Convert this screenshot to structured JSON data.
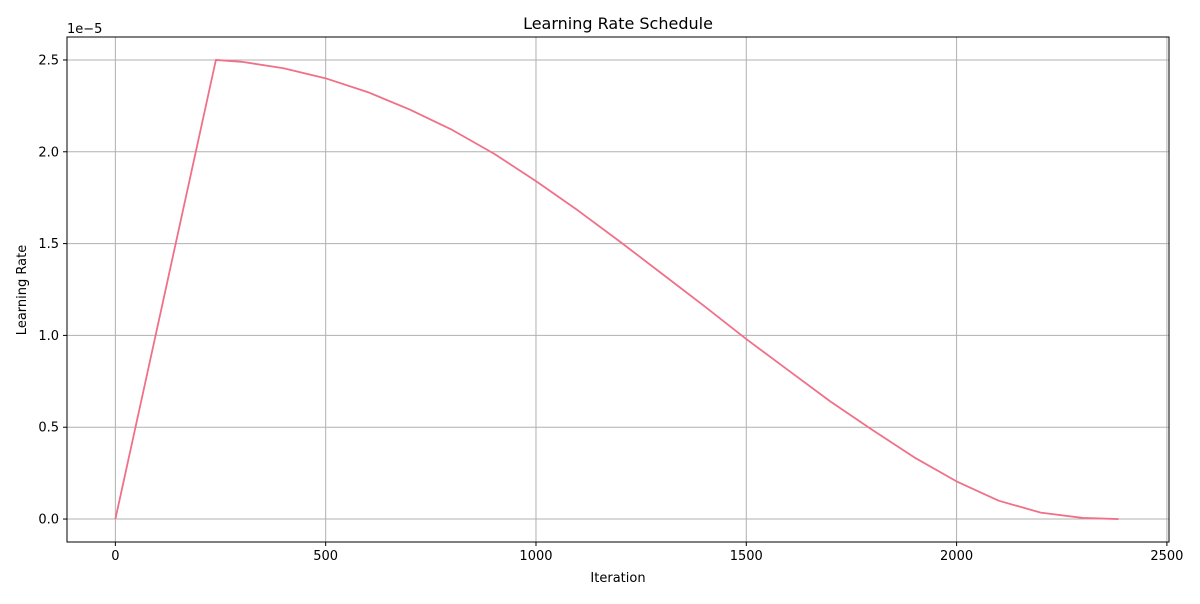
{
  "chart_data": {
    "type": "line",
    "title": "Learning Rate Schedule",
    "xlabel": "Iteration",
    "ylabel": "Learning Rate",
    "y_offset_label": "1e−5",
    "xlim": [
      -115,
      2505
    ],
    "ylim": [
      -0.125,
      2.625
    ],
    "y_unit_multiplier": 1e-05,
    "x_ticks": [
      0,
      500,
      1000,
      1500,
      2000,
      2500
    ],
    "x_tick_labels": [
      "0",
      "500",
      "1000",
      "1500",
      "2000",
      "2500"
    ],
    "y_ticks": [
      0.0,
      0.5,
      1.0,
      1.5,
      2.0,
      2.5
    ],
    "y_tick_labels": [
      "0.0",
      "0.5",
      "1.0",
      "1.5",
      "2.0",
      "2.5"
    ],
    "grid": true,
    "series": [
      {
        "color": "#f07088",
        "schedule": "linear warmup then cosine decay",
        "x": [
          0,
          239,
          300,
          400,
          500,
          600,
          700,
          800,
          900,
          1000,
          1100,
          1200,
          1300,
          1400,
          1500,
          1600,
          1700,
          1800,
          1900,
          2000,
          2100,
          2200,
          2300,
          2385
        ],
        "y": [
          0.0,
          2.5,
          2.49,
          2.455,
          2.4,
          2.325,
          2.23,
          2.12,
          1.99,
          1.84,
          1.68,
          1.51,
          1.335,
          1.16,
          0.98,
          0.81,
          0.64,
          0.485,
          0.335,
          0.205,
          0.1,
          0.035,
          0.006,
          0.0
        ]
      }
    ]
  }
}
